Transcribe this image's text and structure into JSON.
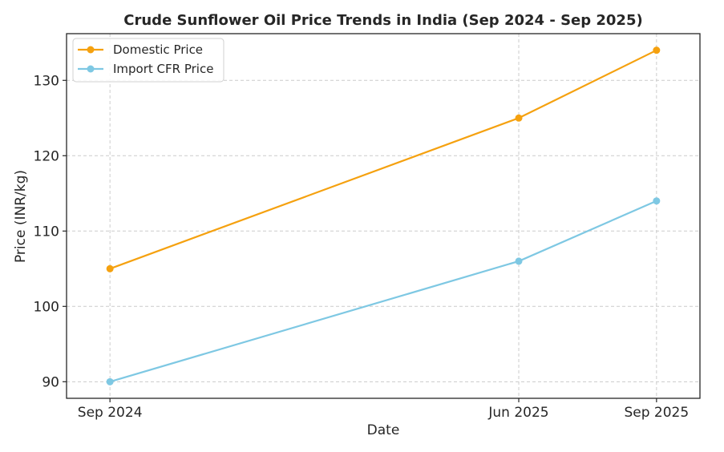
{
  "chart_data": {
    "type": "line",
    "title": "Crude Sunflower Oil Price Trends in India (Sep 2024 - Sep 2025)",
    "xlabel": "Date",
    "ylabel": "Price (INR/kg)",
    "x": [
      "2024-09-01",
      "2025-06-01",
      "2025-09-01"
    ],
    "x_tick_labels": [
      "Sep 2024",
      "Jun 2025",
      "Sep 2025"
    ],
    "y_ticks": [
      90,
      100,
      110,
      120,
      130
    ],
    "ylim": [
      87.8,
      136.2
    ],
    "xlim": [
      "2024-08-03",
      "2025-09-30"
    ],
    "grid": true,
    "legend_position": "top-left",
    "series": [
      {
        "name": "Domestic Price",
        "values": [
          105,
          125,
          134
        ],
        "color": "#f5a10f"
      },
      {
        "name": "Import CFR Price",
        "values": [
          90,
          106,
          114
        ],
        "color": "#7ec8e3"
      }
    ]
  }
}
